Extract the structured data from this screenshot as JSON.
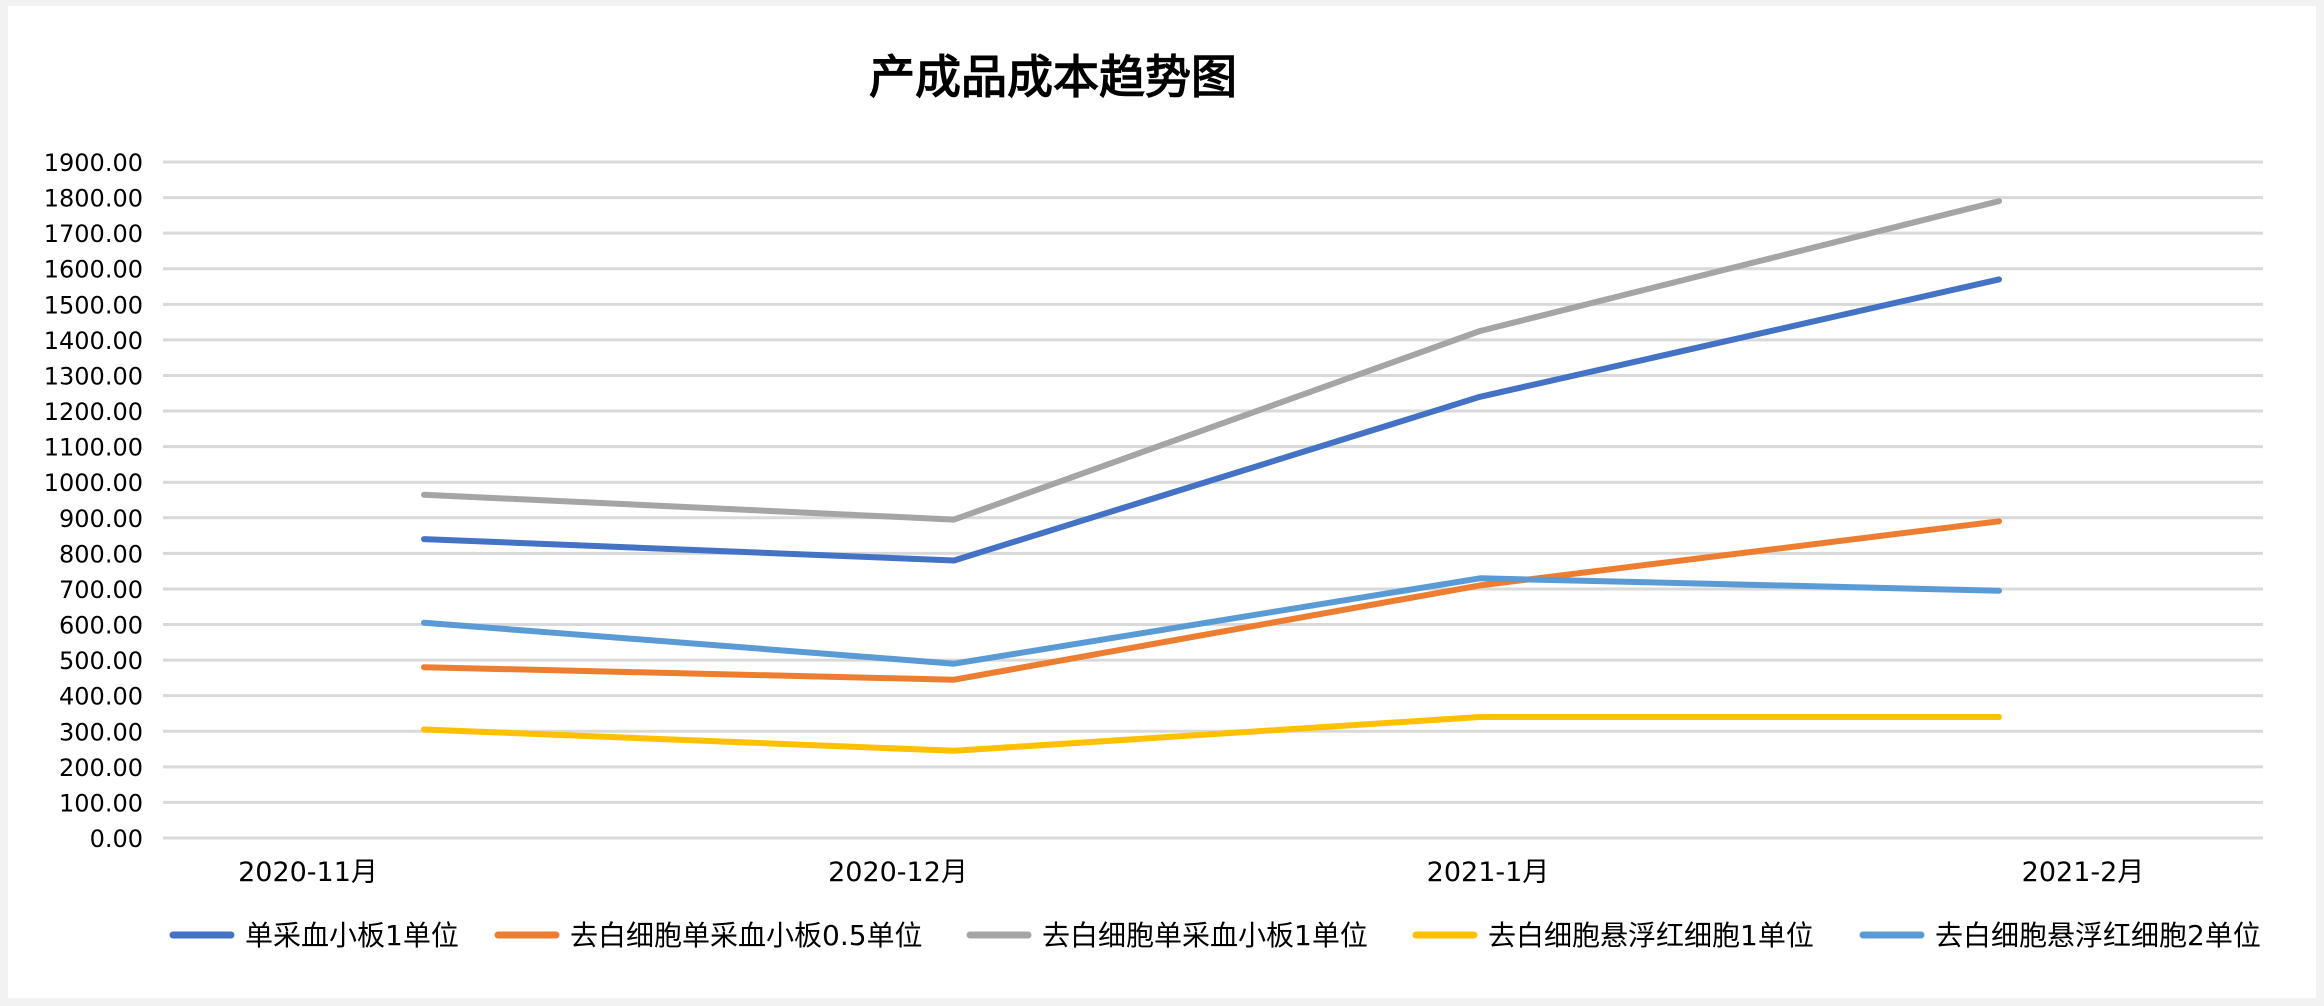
{
  "chart_data": {
    "type": "line",
    "title": "产成品成本趋势图",
    "xlabel": "",
    "ylabel": "",
    "categories": [
      "2020-11月",
      "2020-12月",
      "2021-1月",
      "2021-2月"
    ],
    "ylim": [
      0,
      1900
    ],
    "ytick_step": 100,
    "ytick_labels": [
      "0.00",
      "100.00",
      "200.00",
      "300.00",
      "400.00",
      "500.00",
      "600.00",
      "700.00",
      "800.00",
      "900.00",
      "1000.00",
      "1100.00",
      "1200.00",
      "1300.00",
      "1400.00",
      "1500.00",
      "1600.00",
      "1700.00",
      "1800.00",
      "1900.00"
    ],
    "grid": true,
    "legend_position": "bottom",
    "series": [
      {
        "name": "单采血小板1单位",
        "color": "#4472c4",
        "values": [
          840,
          780,
          1240,
          1570
        ]
      },
      {
        "name": "去白细胞单采血小板0.5单位",
        "color": "#ed7d31",
        "values": [
          480,
          445,
          710,
          890
        ]
      },
      {
        "name": "去白细胞单采血小板1单位",
        "color": "#a5a5a5",
        "values": [
          965,
          895,
          1425,
          1790
        ]
      },
      {
        "name": "去白细胞悬浮红细胞1单位",
        "color": "#ffc000",
        "values": [
          305,
          245,
          340,
          340
        ]
      },
      {
        "name": "去白细胞悬浮红细胞2单位",
        "color": "#5b9bd5",
        "values": [
          605,
          490,
          730,
          695
        ]
      }
    ]
  }
}
